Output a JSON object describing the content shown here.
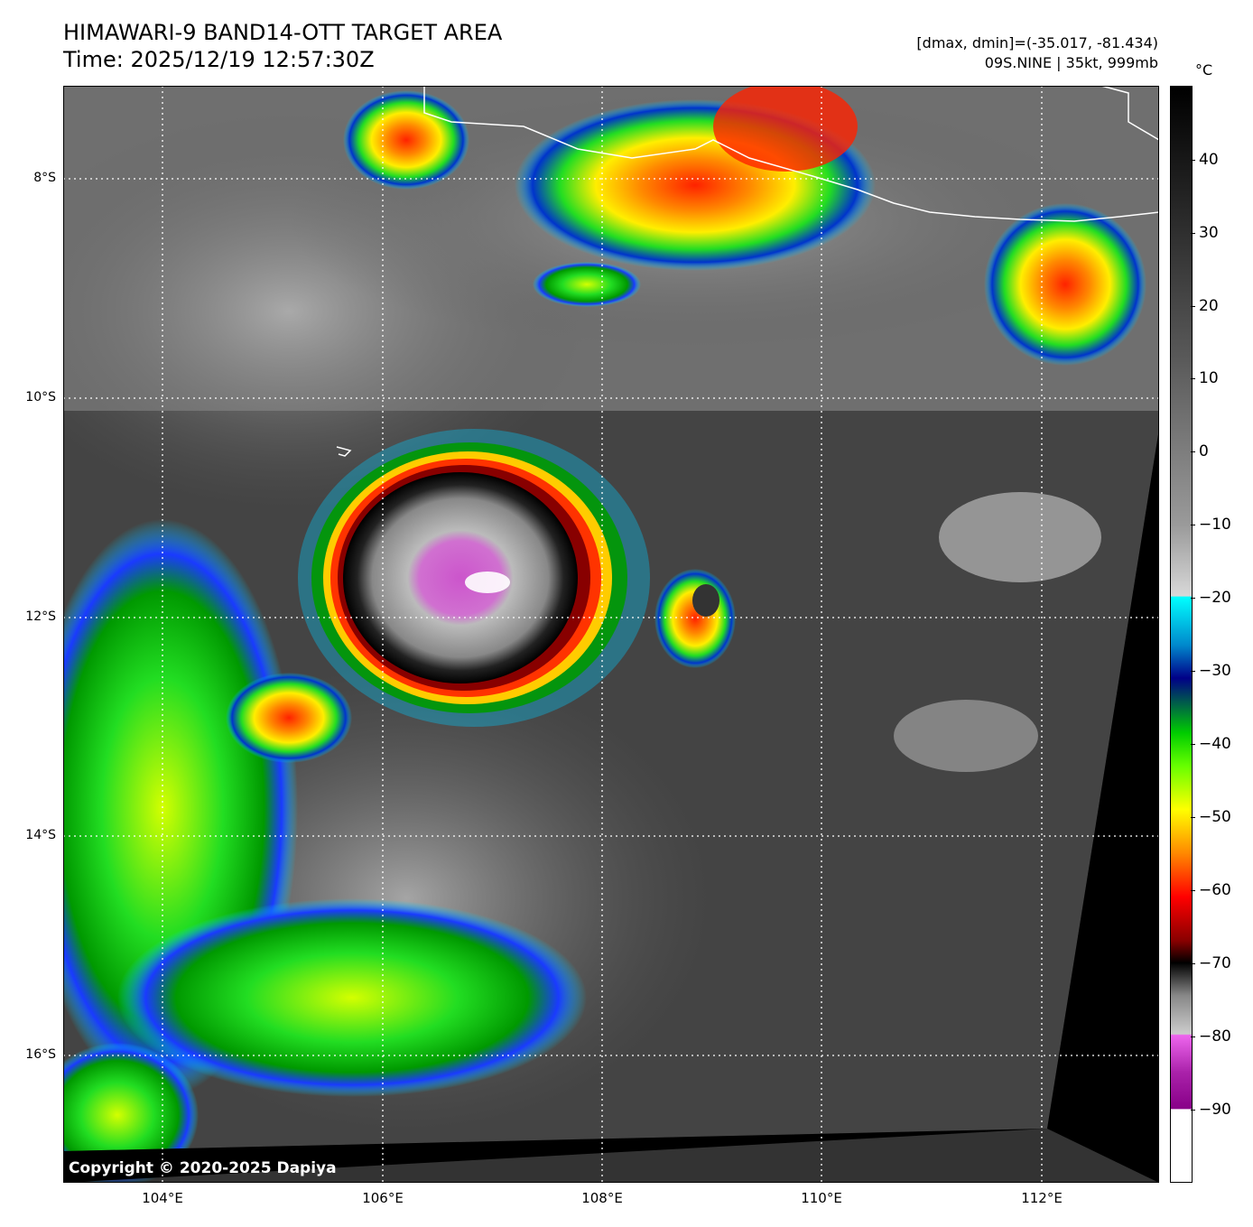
{
  "header": {
    "title": "HIMAWARI-9 BAND14-OTT TARGET AREA",
    "time": "Time: 2025/12/19 12:57:30Z",
    "range": "[dmax, dmin]=(-35.017, -81.434)",
    "storm": "09S.NINE | 35kt, 999mb"
  },
  "map": {
    "copyright": "Copyright © 2020-2025 Dapiya",
    "lat_labels": [
      "8°S",
      "10°S",
      "12°S",
      "14°S",
      "16°S"
    ],
    "lon_labels": [
      "104°E",
      "106°E",
      "108°E",
      "110°E",
      "112°E"
    ]
  },
  "colorbar": {
    "unit": "°C",
    "ticks": [
      "40",
      "30",
      "20",
      "10",
      "0",
      "−10",
      "−20",
      "−30",
      "−40",
      "−50",
      "−60",
      "−70",
      "−80",
      "−90"
    ]
  },
  "colors": {
    "background": "#3a3a3a",
    "coastline": "#ffffff",
    "gridline": "#ffffff"
  }
}
